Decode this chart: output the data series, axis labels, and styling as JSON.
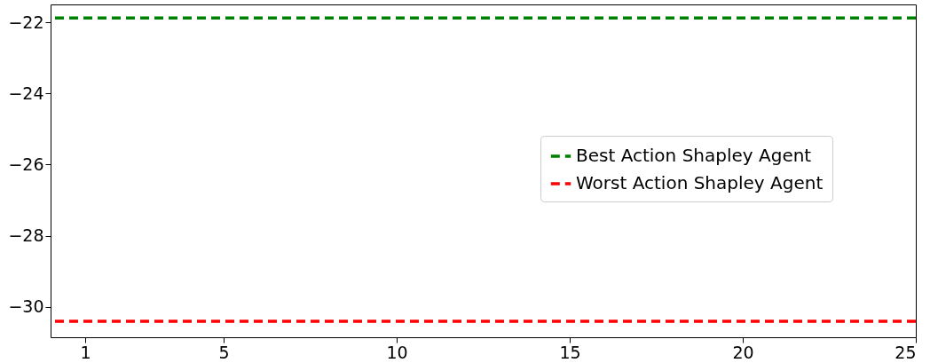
{
  "chart_data": {
    "type": "line",
    "xlim": [
      0,
      25
    ],
    "xticks": [
      1,
      5,
      10,
      15,
      20,
      25
    ],
    "ylim": [
      -30.85,
      -21.5
    ],
    "yticks": [
      -30,
      -28,
      -26,
      -24,
      -22
    ],
    "grid": false,
    "legend": "right",
    "ref_lines": [
      {
        "axis": "y",
        "value": -21.88,
        "label": "Best Action Shapley Agent",
        "color": "#008000",
        "line_style": "dashed"
      },
      {
        "axis": "y",
        "value": -30.4,
        "label": "Worst Action Shapley Agent",
        "color": "#ff0000",
        "line_style": "dashed"
      }
    ]
  }
}
